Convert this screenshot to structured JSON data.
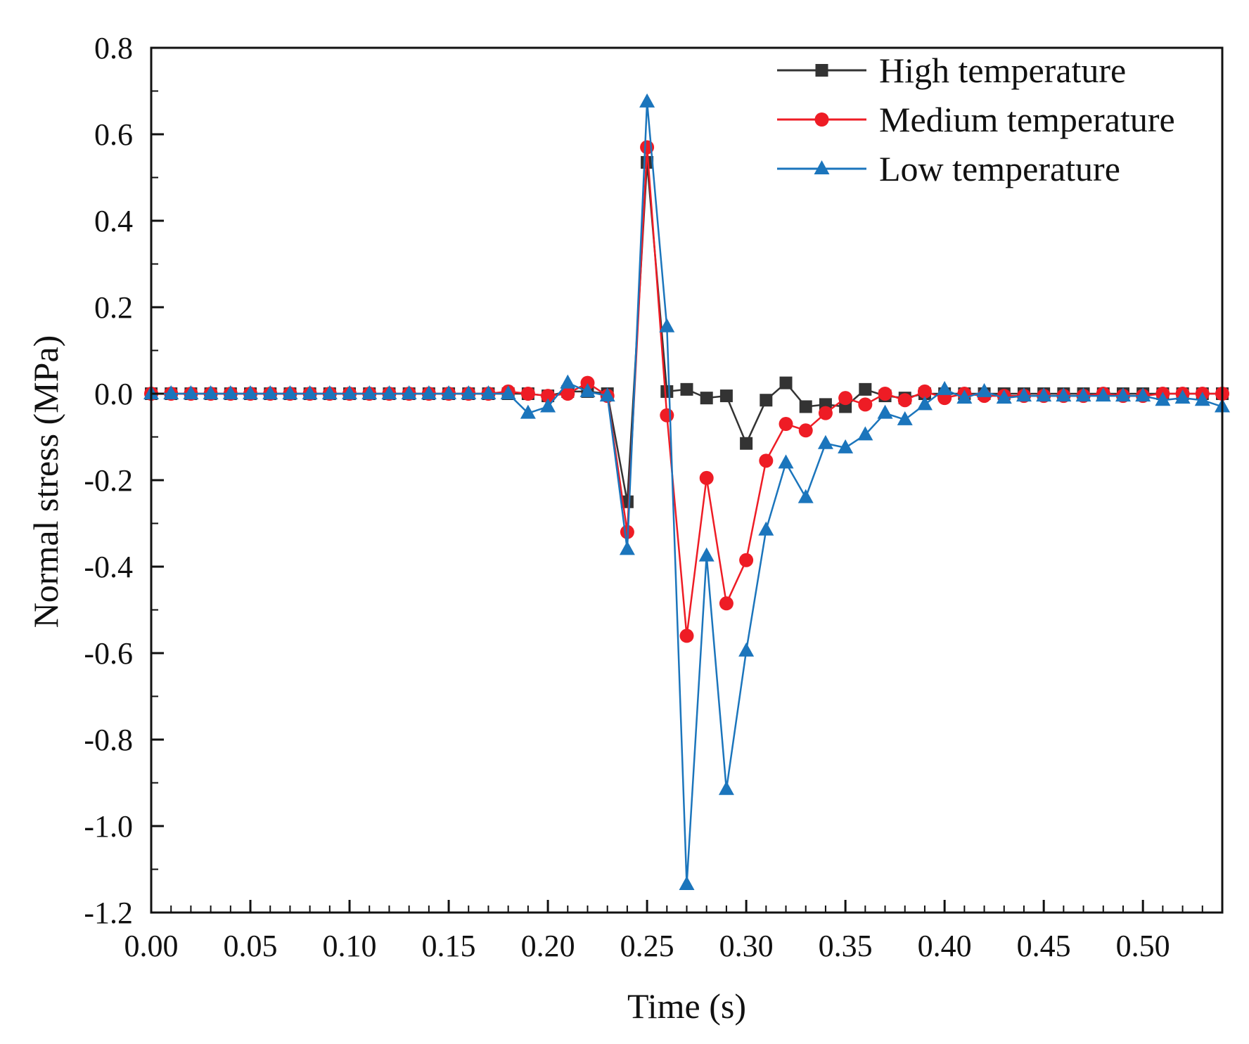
{
  "chart_data": {
    "type": "line",
    "title": "",
    "xlabel": "Time (s)",
    "ylabel": "Normal stress (MPa)",
    "xlim": [
      0.0,
      0.54
    ],
    "ylim": [
      -1.2,
      0.8
    ],
    "xticks": [
      0.0,
      0.05,
      0.1,
      0.15,
      0.2,
      0.25,
      0.3,
      0.35,
      0.4,
      0.45,
      0.5
    ],
    "xtick_labels": [
      "0.00",
      "0.05",
      "0.10",
      "0.15",
      "0.20",
      "0.25",
      "0.30",
      "0.35",
      "0.40",
      "0.45",
      "0.50"
    ],
    "yticks": [
      0.8,
      0.6,
      0.4,
      0.2,
      0.0,
      -0.2,
      -0.4,
      -0.6,
      -0.8,
      -1.0,
      -1.2
    ],
    "ytick_labels": [
      "0.8",
      "0.6",
      "0.4",
      "0.2",
      "0.0",
      "-0.2",
      "-0.4",
      "-0.6",
      "-0.8",
      "-1.0",
      "-1.2"
    ],
    "grid": false,
    "legend_position": "top-right",
    "x": [
      0.0,
      0.01,
      0.02,
      0.03,
      0.04,
      0.05,
      0.06,
      0.07,
      0.08,
      0.09,
      0.1,
      0.11,
      0.12,
      0.13,
      0.14,
      0.15,
      0.16,
      0.17,
      0.18,
      0.19,
      0.2,
      0.21,
      0.22,
      0.23,
      0.24,
      0.25,
      0.26,
      0.27,
      0.28,
      0.29,
      0.3,
      0.31,
      0.32,
      0.33,
      0.34,
      0.35,
      0.36,
      0.37,
      0.38,
      0.39,
      0.4,
      0.41,
      0.42,
      0.43,
      0.44,
      0.45,
      0.46,
      0.47,
      0.48,
      0.49,
      0.5,
      0.51,
      0.52,
      0.53,
      0.54
    ],
    "series": [
      {
        "name": "High temperature",
        "color": "#333333",
        "marker": "square",
        "values": [
          0.0,
          0.0,
          0.0,
          0.0,
          0.0,
          0.0,
          0.0,
          0.0,
          0.0,
          0.0,
          0.0,
          0.0,
          0.0,
          0.0,
          0.0,
          0.0,
          0.0,
          0.0,
          0.0,
          0.0,
          -0.005,
          0.005,
          0.005,
          0.0,
          -0.25,
          0.535,
          0.005,
          0.01,
          -0.01,
          -0.005,
          -0.115,
          -0.015,
          0.025,
          -0.03,
          -0.025,
          -0.03,
          0.01,
          -0.005,
          -0.01,
          0.0,
          0.0,
          0.0,
          0.0,
          0.0,
          0.0,
          0.0,
          0.0,
          0.0,
          0.0,
          0.0,
          0.0,
          0.0,
          0.0,
          0.0,
          0.0
        ]
      },
      {
        "name": "Medium temperature",
        "color": "#ee1c25",
        "marker": "circle",
        "values": [
          0.0,
          0.0,
          0.0,
          0.0,
          0.0,
          0.0,
          0.0,
          0.0,
          0.0,
          0.0,
          0.0,
          0.0,
          0.0,
          0.0,
          0.0,
          0.0,
          0.0,
          0.0,
          0.005,
          0.0,
          -0.005,
          0.0,
          0.025,
          -0.005,
          -0.32,
          0.57,
          -0.05,
          -0.56,
          -0.195,
          -0.485,
          -0.385,
          -0.155,
          -0.07,
          -0.085,
          -0.045,
          -0.01,
          -0.025,
          0.0,
          -0.015,
          0.005,
          -0.01,
          0.0,
          -0.005,
          -0.005,
          -0.005,
          -0.005,
          -0.005,
          -0.005,
          0.0,
          -0.005,
          -0.005,
          0.0,
          0.0,
          0.0,
          0.0
        ]
      },
      {
        "name": "Low temperature",
        "color": "#1b75bc",
        "marker": "triangle",
        "values": [
          0.0,
          0.0,
          0.0,
          0.0,
          0.0,
          0.0,
          0.0,
          0.0,
          0.0,
          0.0,
          0.0,
          0.0,
          0.0,
          0.0,
          0.0,
          0.0,
          0.0,
          0.0,
          0.0,
          -0.045,
          -0.03,
          0.025,
          0.005,
          -0.005,
          -0.36,
          0.675,
          0.155,
          -1.135,
          -0.375,
          -0.915,
          -0.595,
          -0.315,
          -0.16,
          -0.24,
          -0.115,
          -0.125,
          -0.095,
          -0.045,
          -0.06,
          -0.025,
          0.01,
          -0.01,
          0.005,
          -0.01,
          -0.005,
          -0.005,
          -0.005,
          -0.005,
          -0.005,
          -0.005,
          -0.005,
          -0.015,
          -0.01,
          -0.015,
          -0.03
        ]
      }
    ]
  }
}
